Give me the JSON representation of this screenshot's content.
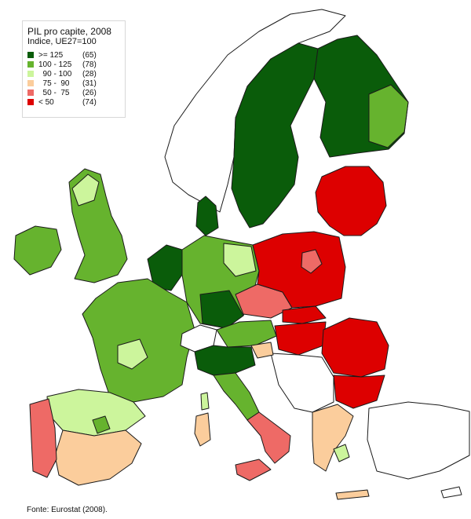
{
  "legend": {
    "title": "PIL pro capite, 2008",
    "subtitle": "Indice, UE27=100",
    "classes": [
      {
        "range": ">= 125",
        "count": "(65)",
        "color": "#0a5c0a"
      },
      {
        "range": "100 - 125",
        "count": "(78)",
        "color": "#66b32e"
      },
      {
        "range": "  90 - 100",
        "count": "(28)",
        "color": "#ccf59c"
      },
      {
        "range": "  75 -  90",
        "count": "(31)",
        "color": "#fbcd9c"
      },
      {
        "range": "  50 -  75",
        "count": "(26)",
        "color": "#ee6a66"
      },
      {
        "range": "< 50",
        "count": "(74)",
        "color": "#dd0000"
      }
    ]
  },
  "source": "Fonte: Eurostat (2008).",
  "colors": {
    "no_data": "#ffffff",
    "border": "#1a1a1a"
  }
}
